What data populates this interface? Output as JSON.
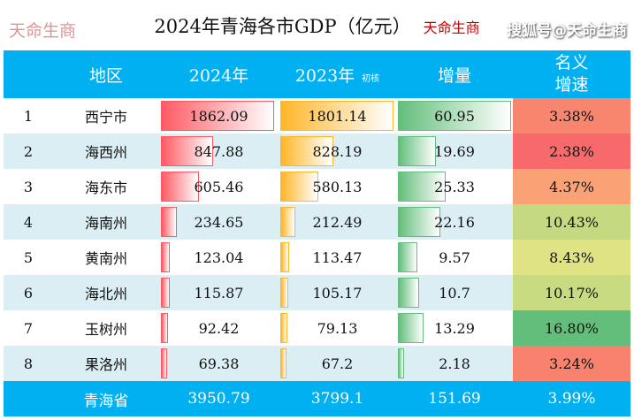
{
  "title": "2024年青海各市GDP（亿元）",
  "brand": "天命生商",
  "headers": {
    "region": "地区",
    "y2024": "2024年",
    "y2023": "2023年",
    "y2023_note": "初核",
    "increase": "增量",
    "rate": "名义增速"
  },
  "rows": [
    {
      "rank": "1",
      "region": "西宁市",
      "y2024": "1862.09",
      "y2023": "1801.14",
      "increase": "60.95",
      "rate": "3.38%",
      "rate_color": "#f8866f"
    },
    {
      "rank": "2",
      "region": "海西州",
      "y2024": "847.88",
      "y2023": "828.19",
      "increase": "19.69",
      "rate": "2.38%",
      "rate_color": "#f8696b"
    },
    {
      "rank": "3",
      "region": "海东市",
      "y2024": "605.46",
      "y2023": "580.13",
      "increase": "25.33",
      "rate": "4.37%",
      "rate_color": "#faa275"
    },
    {
      "rank": "4",
      "region": "海南州",
      "y2024": "234.65",
      "y2023": "212.49",
      "increase": "22.16",
      "rate": "10.43%",
      "rate_color": "#c5da80"
    },
    {
      "rank": "5",
      "region": "黄南州",
      "y2024": "123.04",
      "y2023": "113.47",
      "increase": "9.57",
      "rate": "8.43%",
      "rate_color": "#e0e383"
    },
    {
      "rank": "6",
      "region": "海北州",
      "y2024": "115.87",
      "y2023": "105.17",
      "increase": "10.7",
      "rate": "10.17%",
      "rate_color": "#c9db80"
    },
    {
      "rank": "7",
      "region": "玉树州",
      "y2024": "92.42",
      "y2023": "79.13",
      "increase": "13.29",
      "rate": "16.80%",
      "rate_color": "#63be7b"
    },
    {
      "rank": "8",
      "region": "果洛州",
      "y2024": "69.38",
      "y2023": "67.2",
      "increase": "2.18",
      "rate": "3.24%",
      "rate_color": "#f8826e"
    }
  ],
  "total": {
    "region": "青海省",
    "y2024": "3950.79",
    "y2023": "3799.1",
    "increase": "151.69",
    "rate": "3.99%"
  },
  "watermark": "搜狐号@天命生商",
  "center_watermark": "天命生商"
}
